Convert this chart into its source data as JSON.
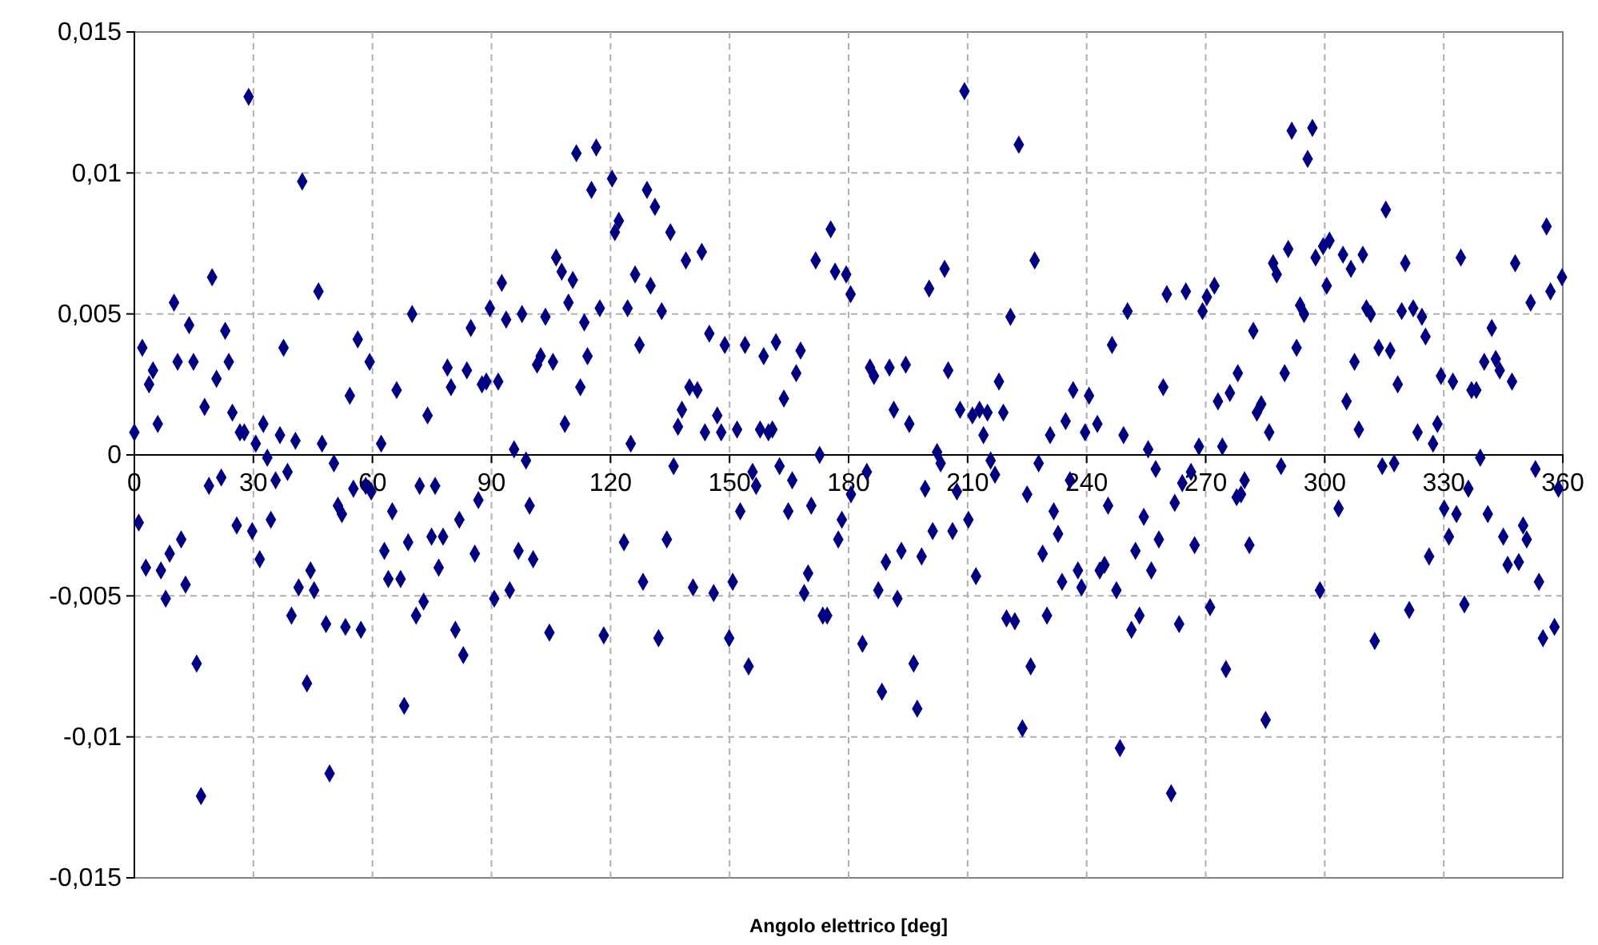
{
  "chart_data": {
    "type": "scatter",
    "xlabel": "Angolo elettrico [deg]",
    "xlim": [
      0,
      360
    ],
    "xticks": [
      0,
      30,
      60,
      90,
      120,
      150,
      180,
      210,
      240,
      270,
      300,
      330,
      360
    ],
    "ylim": [
      -0.015,
      0.015
    ],
    "yticks": [
      {
        "value": -0.015,
        "label": "-0,015"
      },
      {
        "value": -0.01,
        "label": "-0,01"
      },
      {
        "value": -0.005,
        "label": "-0,005"
      },
      0,
      {
        "value": 0.005,
        "label": "0,005"
      },
      {
        "value": 0.01,
        "label": "0,01"
      },
      {
        "value": 0.015,
        "label": "0,015"
      }
    ],
    "grid": true,
    "marker": "diamond",
    "series": [
      {
        "color": "#000080",
        "x": [
          0,
          1.1,
          2,
          4.7,
          3.7,
          5.9,
          2.9,
          6.7,
          7.9,
          8.9,
          10,
          10.9,
          11.8,
          12.9,
          13.8,
          14.9,
          15.7,
          16.8,
          17.7,
          18.8,
          19.6,
          20.7,
          21.9,
          22.9,
          23.8,
          24.7,
          25.8,
          26.6,
          27.7,
          28.8,
          29.7,
          30.6,
          31.6,
          32.5,
          33.5,
          34.4,
          35.6,
          36.7,
          38.6,
          37.6,
          39.6,
          40.6,
          41.4,
          42.3,
          43.5,
          44.4,
          45.3,
          46.4,
          47.3,
          48.3,
          49.2,
          50.3,
          51.3,
          52.3,
          53.2,
          54.3,
          55.2,
          56.3,
          57.1,
          58.3,
          59.3,
          59.7,
          62.2,
          63,
          64,
          65,
          66.1,
          67.1,
          68,
          69,
          70,
          71,
          71.9,
          72.9,
          73.9,
          74.9,
          75.8,
          76.7,
          77.8,
          78.9,
          79.8,
          80.9,
          81.9,
          82.9,
          83.8,
          84.8,
          85.8,
          86.7,
          87.6,
          88.7,
          89.6,
          90.7,
          91.7,
          92.6,
          93.7,
          94.6,
          95.7,
          96.8,
          97.7,
          98.7,
          99.6,
          100.5,
          101.5,
          102.4,
          103.6,
          104.6,
          105.5,
          106.3,
          107.7,
          108.5,
          109.4,
          110.5,
          111.4,
          112.4,
          113.4,
          114.2,
          115.2,
          116.4,
          117.3,
          118.3,
          120.4,
          122.1,
          121.1,
          123.4,
          124.3,
          125.1,
          126.2,
          127.3,
          128.2,
          129.2,
          130.1,
          131.2,
          132.1,
          132.9,
          134.2,
          135.1,
          135.9,
          137,
          138,
          139,
          139.9,
          140.8,
          141.9,
          143,
          143.8,
          144.9,
          146,
          146.9,
          147.9,
          148.8,
          149.9,
          150.8,
          151.9,
          152.7,
          153.9,
          154.8,
          155.8,
          156.7,
          157.7,
          158.6,
          159.8,
          160.8,
          161.7,
          162.6,
          163.7,
          164.8,
          165.8,
          166.8,
          167.9,
          168.8,
          169.8,
          170.6,
          171.7,
          172.7,
          173.5,
          174.6,
          175.5,
          176.6,
          177.4,
          178.3,
          179.4,
          180.5,
          180.6,
          183.5,
          184.6,
          185.4,
          186.4,
          187.5,
          188.4,
          189.4,
          190.3,
          191.4,
          192.3,
          193.3,
          194.4,
          195.3,
          196.4,
          197.3,
          198.4,
          199.3,
          200.3,
          201.2,
          202.3,
          203.2,
          204.2,
          205.1,
          206.2,
          207.3,
          208.1,
          209.2,
          210.2,
          211.2,
          212.1,
          213,
          214,
          215,
          215.8,
          216.9,
          217.9,
          219,
          219.8,
          220.8,
          221.9,
          222.9,
          223.8,
          225,
          225.9,
          226.9,
          227.9,
          228.9,
          230,
          230.8,
          231.7,
          232.8,
          233.8,
          234.7,
          235.8,
          236.6,
          237.8,
          238.7,
          239.6,
          240.6,
          242.7,
          243.3,
          244.5,
          245.4,
          246.4,
          247.5,
          248.4,
          249.3,
          250.3,
          251.3,
          252.3,
          253.3,
          254.4,
          255.5,
          256.3,
          257.4,
          258.2,
          259.3,
          260.2,
          261.3,
          262.2,
          263.3,
          264.1,
          265,
          266.3,
          267.2,
          268.3,
          269.2,
          270.3,
          271.1,
          272.2,
          273.1,
          274.2,
          275.1,
          276.1,
          278.1,
          277.8,
          278.9,
          279.8,
          281,
          282,
          282.9,
          284,
          285.1,
          286,
          287,
          287.9,
          289,
          289.9,
          290.8,
          291.7,
          292.9,
          293.8,
          294.8,
          295.7,
          296.9,
          297.7,
          298.8,
          299.6,
          300.5,
          301.2,
          303.5,
          304.6,
          305.5,
          306.6,
          307.5,
          308.6,
          309.6,
          310.5,
          311.6,
          312.6,
          313.6,
          314.5,
          315.4,
          316.5,
          317.5,
          318.4,
          319.4,
          320.3,
          321.3,
          322.3,
          323.4,
          324.5,
          325.4,
          326.3,
          327.3,
          328.4,
          329.3,
          330.1,
          331.3,
          332.3,
          333.2,
          334.3,
          335.2,
          336.2,
          337,
          338.2,
          339.2,
          340.2,
          341.1,
          342.1,
          343.1,
          344.1,
          345,
          346.1,
          347.2,
          348,
          348.9,
          350,
          350.9,
          351.9,
          353.1,
          354,
          355,
          355.9,
          356.9,
          357.9,
          358.9,
          359.8
        ],
        "values": [
          0.0008,
          -0.0024,
          0.0038,
          0.003,
          0.0025,
          0.0011,
          -0.004,
          -0.0041,
          -0.0051,
          -0.0035,
          0.0054,
          0.0033,
          -0.003,
          -0.0046,
          0.0046,
          0.0033,
          -0.0074,
          -0.0121,
          0.0017,
          -0.0011,
          0.0063,
          0.0027,
          -0.0008,
          0.0044,
          0.0033,
          0.0015,
          -0.0025,
          0.0008,
          0.0008,
          0.0127,
          -0.0027,
          0.0004,
          -0.0037,
          0.0011,
          -0.0001,
          -0.0023,
          -0.0009,
          0.0007,
          -0.0006,
          0.0038,
          -0.0057,
          0.0005,
          -0.0047,
          0.0097,
          -0.0081,
          -0.0041,
          -0.0048,
          0.0058,
          0.0004,
          -0.006,
          -0.0113,
          -0.0003,
          -0.0018,
          -0.0021,
          -0.0061,
          0.0021,
          -0.0012,
          0.0041,
          -0.0062,
          -0.0011,
          0.0033,
          -0.0013,
          0.0004,
          -0.0034,
          -0.0044,
          -0.002,
          0.0023,
          -0.0044,
          -0.0089,
          -0.0031,
          0.005,
          -0.0057,
          -0.0011,
          -0.0052,
          0.0014,
          -0.0029,
          -0.0011,
          -0.004,
          -0.0029,
          0.0031,
          0.0024,
          -0.0062,
          -0.0023,
          -0.0071,
          0.003,
          0.0045,
          -0.0035,
          -0.0016,
          0.0025,
          0.0026,
          0.0052,
          -0.0051,
          0.0026,
          0.0061,
          0.0048,
          -0.0048,
          0.0002,
          -0.0034,
          0.005,
          -0.0002,
          -0.0018,
          -0.0037,
          0.0032,
          0.0035,
          0.0049,
          -0.0063,
          0.0033,
          0.007,
          0.0065,
          0.0011,
          0.0054,
          0.0062,
          0.0107,
          0.0024,
          0.0047,
          0.0035,
          0.0094,
          0.0109,
          0.0052,
          -0.0064,
          0.0098,
          0.0083,
          0.0079,
          -0.0031,
          0.0052,
          0.0004,
          0.0064,
          0.0039,
          -0.0045,
          0.0094,
          0.006,
          0.0088,
          -0.0065,
          0.0051,
          -0.003,
          0.0079,
          -0.0004,
          0.001,
          0.0016,
          0.0069,
          0.0024,
          -0.0047,
          0.0023,
          0.0072,
          0.0008,
          0.0043,
          -0.0049,
          0.0014,
          0.0008,
          0.0039,
          -0.0065,
          -0.0045,
          0.0009,
          -0.002,
          0.0039,
          -0.0075,
          -0.0006,
          -0.0011,
          0.0009,
          0.0035,
          0.0008,
          0.0009,
          0.004,
          -0.0004,
          0.002,
          -0.002,
          -0.0009,
          0.0029,
          0.0037,
          -0.0049,
          -0.0042,
          -0.0018,
          0.0069,
          0,
          -0.0057,
          -0.0057,
          0.008,
          0.0065,
          -0.003,
          -0.0023,
          0.0064,
          0.0057,
          -0.0014,
          -0.0067,
          -0.0006,
          0.0031,
          0.0028,
          -0.0048,
          -0.0084,
          -0.0038,
          0.0031,
          0.0016,
          -0.0051,
          -0.0034,
          0.0032,
          0.0011,
          -0.0074,
          -0.009,
          -0.0036,
          -0.0012,
          0.0059,
          -0.0027,
          0.0001,
          -0.0003,
          0.0066,
          0.003,
          -0.0027,
          -0.0013,
          0.0016,
          0.0129,
          -0.0023,
          0.0014,
          -0.0043,
          0.0016,
          0.0007,
          0.0015,
          -0.0002,
          -0.0007,
          0.0026,
          0.0015,
          -0.0058,
          0.0049,
          -0.0059,
          0.011,
          -0.0097,
          -0.0014,
          -0.0075,
          0.0069,
          -0.0003,
          -0.0035,
          -0.0057,
          0.0007,
          -0.002,
          -0.0028,
          -0.0045,
          0.0012,
          -0.0009,
          0.0023,
          -0.0041,
          -0.0047,
          0.0008,
          0.0021,
          0.0011,
          -0.0041,
          -0.0039,
          -0.0018,
          0.0039,
          -0.0048,
          -0.0104,
          0.0007,
          0.0051,
          -0.0062,
          -0.0034,
          -0.0057,
          -0.0022,
          0.0002,
          -0.0041,
          -0.0005,
          -0.003,
          0.0024,
          0.0057,
          -0.012,
          -0.0017,
          -0.006,
          -0.001,
          0.0058,
          -0.0006,
          -0.0032,
          0.0003,
          0.0051,
          0.0056,
          -0.0054,
          0.006,
          0.0019,
          0.0003,
          -0.0076,
          0.0022,
          0.0029,
          -0.0015,
          -0.0014,
          -0.0009,
          -0.0032,
          0.0044,
          0.0015,
          0.0018,
          -0.0094,
          0.0008,
          0.0068,
          0.0064,
          -0.0004,
          0.0029,
          0.0073,
          0.0115,
          0.0038,
          0.0053,
          0.005,
          0.0105,
          0.0116,
          0.007,
          -0.0048,
          0.0074,
          0.006,
          0.0076,
          -0.0019,
          0.0071,
          0.0019,
          0.0066,
          0.0033,
          0.0009,
          0.0071,
          0.0052,
          0.005,
          -0.0066,
          0.0038,
          -0.0004,
          0.0087,
          0.0037,
          -0.0003,
          0.0025,
          0.0051,
          0.0068,
          -0.0055,
          0.0052,
          0.0008,
          0.0049,
          0.0042,
          -0.0036,
          0.0004,
          0.0011,
          0.0028,
          -0.0019,
          -0.0029,
          0.0026,
          -0.0021,
          0.007,
          -0.0053,
          -0.0012,
          0.0023,
          0.0023,
          -0.0001,
          0.0033,
          -0.0021,
          0.0045,
          0.0034,
          0.003,
          -0.0029,
          -0.0039,
          0.0026,
          0.0068,
          -0.0038,
          -0.0025,
          -0.003,
          0.0054,
          -0.0005,
          -0.0045,
          -0.0065,
          0.0081,
          0.0058,
          -0.0061,
          -0.0012,
          0.0063
        ]
      }
    ]
  }
}
